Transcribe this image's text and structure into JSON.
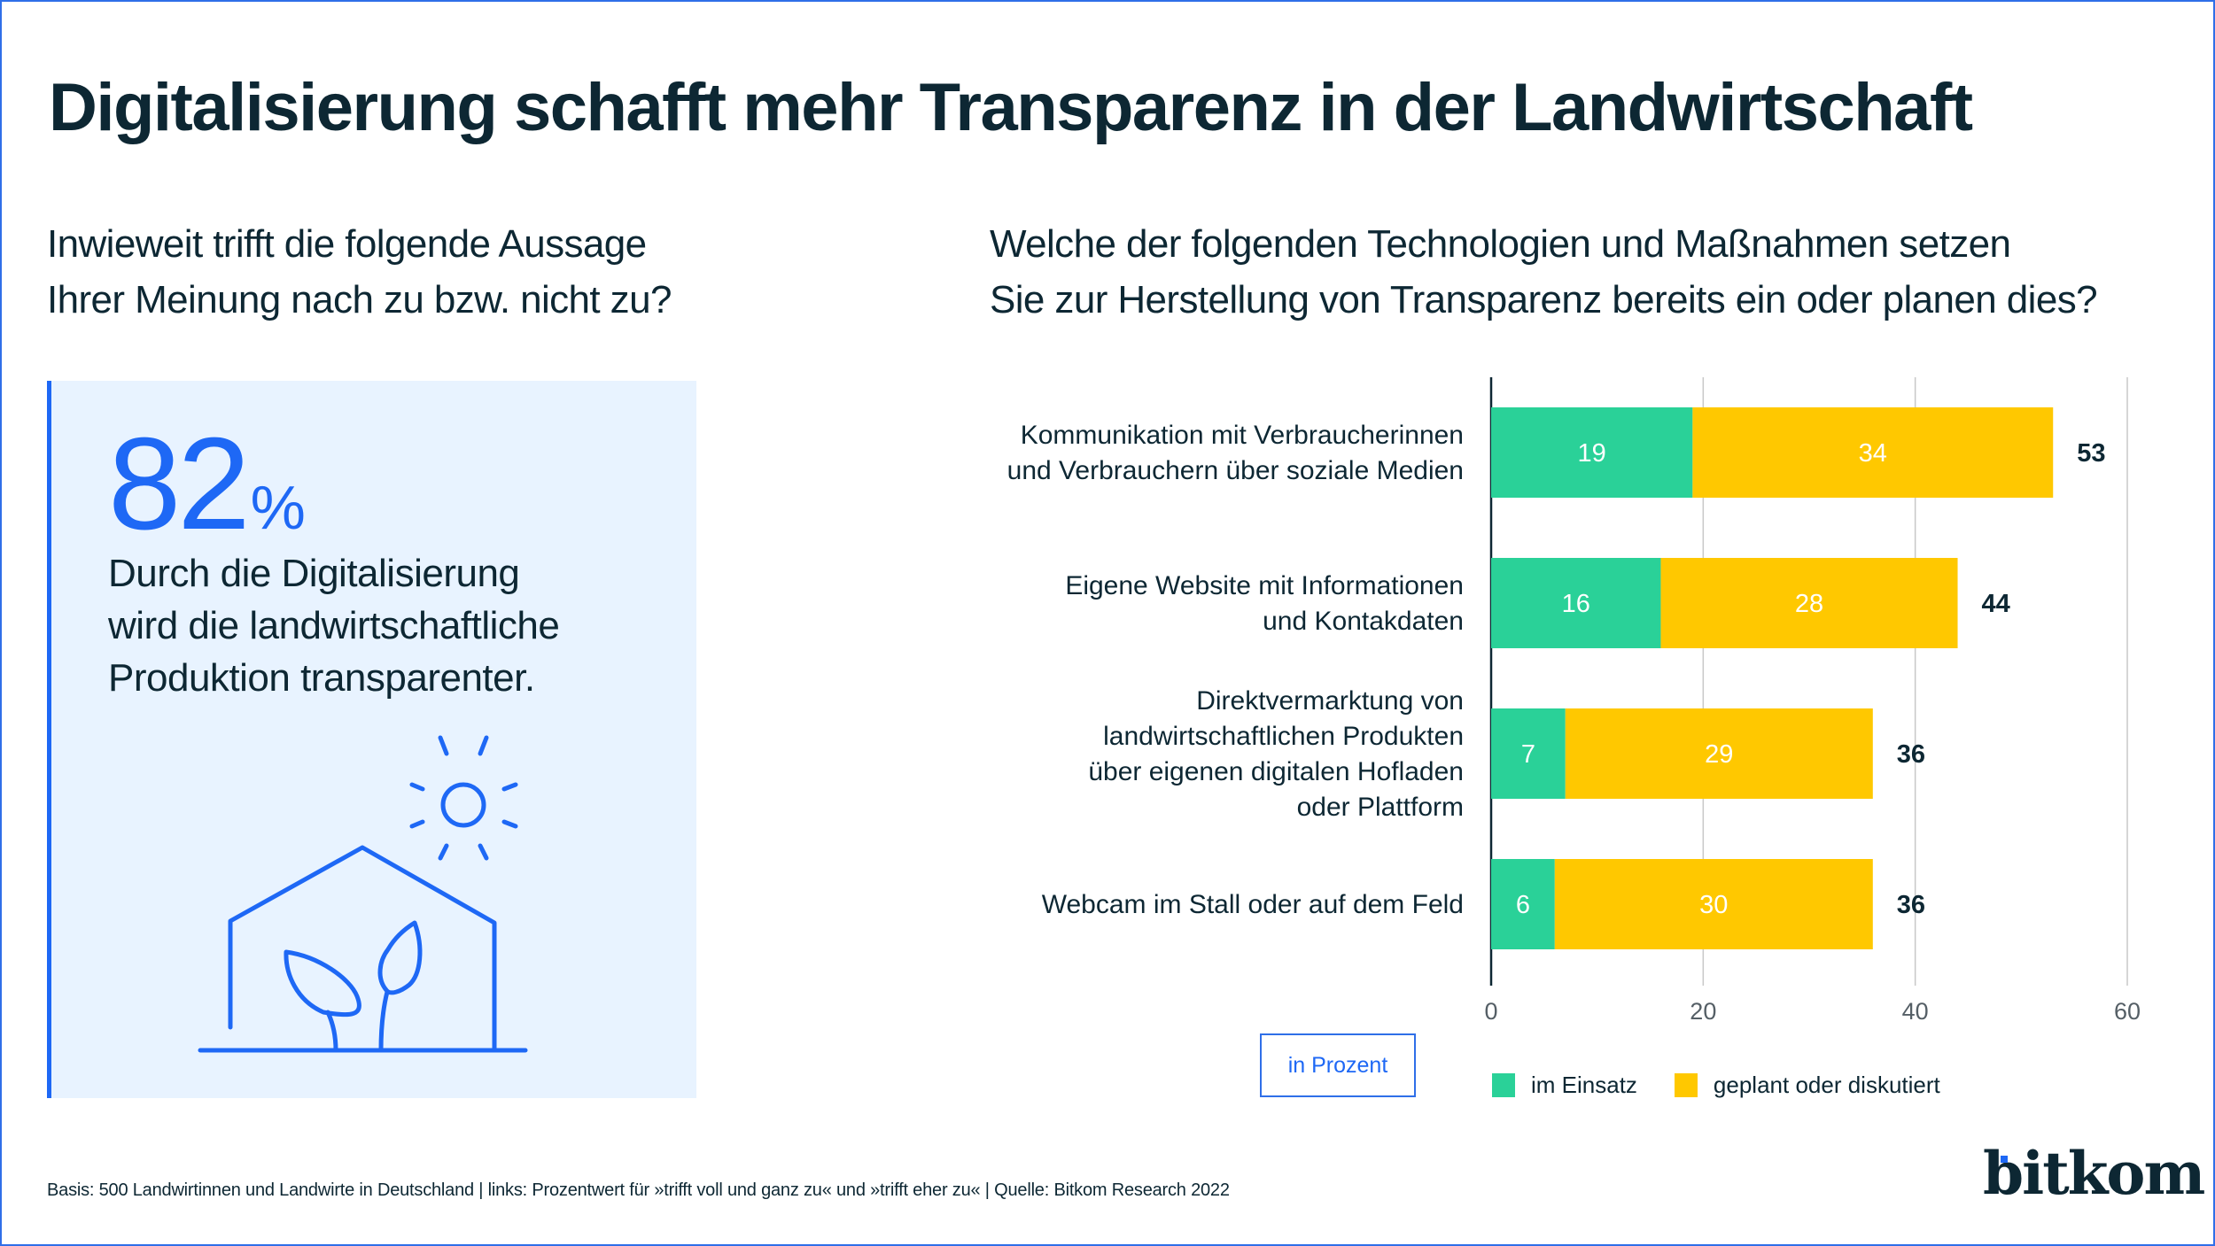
{
  "title": "Digitalisierung schafft mehr Transparenz in der Landwirtschaft",
  "left": {
    "question": [
      "Inwieweit trifft die folgende Aussage",
      "Ihrer Meinung nach zu bzw. nicht zu?"
    ],
    "stat_value": "82",
    "stat_unit": "%",
    "stat_text": [
      "Durch die Digitalisierung",
      "wird die landwirtschaftliche",
      "Produktion transparenter."
    ],
    "illustration_icon": "greenhouse-sun-plants-icon"
  },
  "right": {
    "question": [
      "Welche der folgenden Technologien und Maßnahmen setzen",
      "Sie zur Herstellung von Transparenz bereits ein oder planen dies?"
    ],
    "unit_label": "in Prozent"
  },
  "colors": {
    "accent_blue": "#1e68f5",
    "im_einsatz": "#2ad198",
    "geplant": "#ffc800",
    "text_dark": "#0d2733",
    "panel_bg": "#e8f3ff"
  },
  "chart_data": {
    "type": "bar",
    "orientation": "horizontal",
    "stacked": true,
    "title": "Welche der folgenden Technologien und Maßnahmen setzen Sie zur Herstellung von Transparenz bereits ein oder planen dies?",
    "xlabel": "in Prozent",
    "ylabel": "",
    "xlim": [
      0,
      60
    ],
    "xticks": [
      0,
      20,
      40,
      60
    ],
    "grid": true,
    "legend_position": "bottom",
    "categories": [
      [
        "Kommunikation mit Verbraucherinnen",
        "und Verbrauchern über soziale Medien"
      ],
      [
        "Eigene Website mit Informationen",
        "und Kontakdaten"
      ],
      [
        "Direktvermarktung von",
        "landwirtschaftlichen Produkten",
        "über eigenen digitalen Hofladen",
        "oder Plattform"
      ],
      [
        "Webcam im Stall oder auf dem Feld"
      ]
    ],
    "series": [
      {
        "name": "im Einsatz",
        "color": "#2ad198",
        "values": [
          19,
          16,
          7,
          6
        ]
      },
      {
        "name": "geplant oder diskutiert",
        "color": "#ffc800",
        "values": [
          34,
          28,
          29,
          30
        ]
      }
    ],
    "totals": [
      53,
      44,
      36,
      36
    ]
  },
  "footer": "Basis: 500 Landwirtinnen und Landwirte in Deutschland | links: Prozentwert für »trifft voll und ganz zu« und »trifft eher zu« | Quelle: Bitkom Research 2022",
  "logo": "bitkom"
}
